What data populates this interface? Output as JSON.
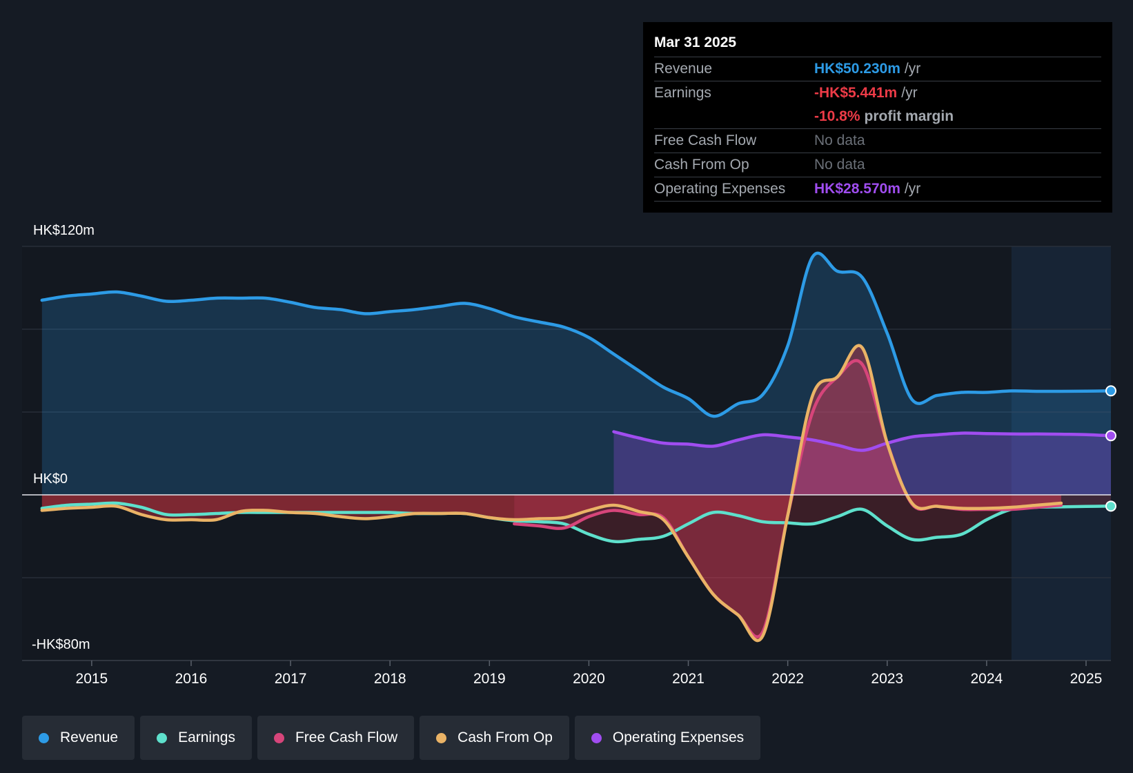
{
  "colors": {
    "revenue": "#2d9be6",
    "earnings": "#5ee0cc",
    "free_cash_flow": "#d6457a",
    "cash_from_op": "#eab366",
    "operating_expenses": "#a04df0",
    "negative": "#ed3b47",
    "background": "#151b24"
  },
  "tooltip": {
    "date": "Mar 31 2025",
    "rows": [
      {
        "label": "Revenue",
        "value": "HK$50.230m",
        "unit": "/yr"
      },
      {
        "label": "Earnings",
        "value": "-HK$5.441m",
        "unit": "/yr"
      },
      {
        "label": "",
        "value": "-10.8%",
        "unit": "profit margin"
      },
      {
        "label": "Free Cash Flow",
        "value": "No data",
        "unit": ""
      },
      {
        "label": "Cash From Op",
        "value": "No data",
        "unit": ""
      },
      {
        "label": "Operating Expenses",
        "value": "HK$28.570m",
        "unit": "/yr"
      }
    ]
  },
  "legend": [
    {
      "label": "Revenue",
      "icon": "revenue-dot"
    },
    {
      "label": "Earnings",
      "icon": "earnings-dot"
    },
    {
      "label": "Free Cash Flow",
      "icon": "free-cash-flow-dot"
    },
    {
      "label": "Cash From Op",
      "icon": "cash-from-op-dot"
    },
    {
      "label": "Operating Expenses",
      "icon": "operating-expenses-dot"
    }
  ],
  "chart_data": {
    "type": "area",
    "title": "",
    "xlabel": "",
    "ylabel": "",
    "y_axis_labels": {
      "top": "HK$120m",
      "zero": "HK$0",
      "bottom": "-HK$80m"
    },
    "ylim": [
      -80,
      120
    ],
    "xlim": [
      2014.3,
      2025.25
    ],
    "x_ticks": [
      "2015",
      "2016",
      "2017",
      "2018",
      "2019",
      "2020",
      "2021",
      "2022",
      "2023",
      "2024",
      "2025"
    ],
    "forecast_shade_start": 2024.25,
    "series": [
      {
        "name": "Revenue",
        "x": [
          2014.5,
          2014.75,
          2015.0,
          2015.25,
          2015.5,
          2015.75,
          2016.0,
          2016.25,
          2016.5,
          2016.75,
          2017.0,
          2017.25,
          2017.5,
          2017.75,
          2018.0,
          2018.25,
          2018.5,
          2018.75,
          2019.0,
          2019.25,
          2019.5,
          2019.75,
          2020.0,
          2020.25,
          2020.5,
          2020.75,
          2021.0,
          2021.25,
          2021.5,
          2021.75,
          2022.0,
          2022.25,
          2022.5,
          2022.75,
          2023.0,
          2023.25,
          2023.5,
          2023.75,
          2024.0,
          2024.25,
          2024.5,
          2024.75,
          2025.0,
          2025.25
        ],
        "values": [
          94,
          96,
          97,
          98,
          96,
          93.5,
          94,
          95,
          95,
          95,
          93,
          90.5,
          89.5,
          87.5,
          88.5,
          89.5,
          91,
          92.5,
          90,
          86,
          83.5,
          81,
          76,
          68,
          60,
          52,
          46.5,
          38,
          44,
          48.5,
          72,
          115,
          108,
          105,
          78,
          46,
          48,
          49.5,
          49.5,
          50.2,
          50,
          50,
          50.1,
          50.23
        ]
      },
      {
        "name": "Earnings",
        "x": [
          2014.5,
          2014.75,
          2015.0,
          2015.25,
          2015.5,
          2015.75,
          2016.0,
          2016.25,
          2016.5,
          2016.75,
          2017.0,
          2017.25,
          2017.5,
          2017.75,
          2018.0,
          2018.25,
          2018.5,
          2018.75,
          2019.0,
          2019.25,
          2019.5,
          2019.75,
          2020.0,
          2020.25,
          2020.5,
          2020.75,
          2021.0,
          2021.25,
          2021.5,
          2021.75,
          2022.0,
          2022.25,
          2022.5,
          2022.75,
          2023.0,
          2023.25,
          2023.5,
          2023.75,
          2024.0,
          2024.25,
          2024.5,
          2024.75,
          2025.0,
          2025.25
        ],
        "values": [
          -6.5,
          -5,
          -4.5,
          -4,
          -6,
          -9.5,
          -9.5,
          -9,
          -8.5,
          -8.5,
          -8.5,
          -8.5,
          -8.5,
          -8.5,
          -8.5,
          -9,
          -9,
          -9,
          -11,
          -12.5,
          -13,
          -14,
          -19,
          -22.5,
          -21.5,
          -20,
          -14,
          -8.5,
          -10,
          -13,
          -13.5,
          -14,
          -10.5,
          -7,
          -15,
          -21.5,
          -20.5,
          -19,
          -12,
          -7,
          -6,
          -5.8,
          -5.6,
          -5.44
        ]
      },
      {
        "name": "Free Cash Flow",
        "x": [
          2019.25,
          2019.5,
          2019.75,
          2020.0,
          2020.25,
          2020.5,
          2020.75,
          2021.0,
          2021.25,
          2021.5,
          2021.75,
          2022.0,
          2022.25,
          2022.5,
          2022.75,
          2023.0,
          2023.25,
          2023.5,
          2023.75,
          2024.0,
          2024.25,
          2024.5,
          2024.75
        ],
        "values": [
          -14,
          -15,
          -16,
          -10.5,
          -7.5,
          -9.5,
          -11,
          -30,
          -48,
          -58,
          -66,
          -10,
          40,
          57,
          63,
          25,
          -4.5,
          -5.5,
          -7,
          -7,
          -7,
          -6,
          -5
        ]
      },
      {
        "name": "Cash From Op",
        "x": [
          2014.5,
          2014.75,
          2015.0,
          2015.25,
          2015.5,
          2015.75,
          2016.0,
          2016.25,
          2016.5,
          2016.75,
          2017.0,
          2017.25,
          2017.5,
          2017.75,
          2018.0,
          2018.25,
          2018.5,
          2018.75,
          2019.0,
          2019.25,
          2019.5,
          2019.75,
          2020.0,
          2020.25,
          2020.5,
          2020.75,
          2021.0,
          2021.25,
          2021.5,
          2021.75,
          2022.0,
          2022.25,
          2022.5,
          2022.75,
          2023.0,
          2023.25,
          2023.5,
          2023.75,
          2024.0,
          2024.25,
          2024.5,
          2024.75
        ],
        "values": [
          -7.5,
          -6.5,
          -6,
          -5.5,
          -9.5,
          -12,
          -12,
          -12,
          -8,
          -7.5,
          -8.5,
          -9,
          -10.5,
          -11.5,
          -10.5,
          -9,
          -9,
          -9,
          -11,
          -12,
          -11.5,
          -11,
          -7.5,
          -5,
          -8,
          -12,
          -30,
          -48,
          -58,
          -68,
          -10,
          48,
          57,
          71,
          25,
          -4,
          -5.5,
          -6.5,
          -6.5,
          -6,
          -5,
          -4
        ]
      },
      {
        "name": "Operating Expenses",
        "x": [
          2020.25,
          2020.5,
          2020.75,
          2021.0,
          2021.25,
          2021.5,
          2021.75,
          2022.0,
          2022.25,
          2022.5,
          2022.75,
          2023.0,
          2023.25,
          2023.5,
          2023.75,
          2024.0,
          2024.25,
          2024.5,
          2024.75,
          2025.0,
          2025.25
        ],
        "values": [
          30.5,
          27.5,
          25,
          24.5,
          23.5,
          26.5,
          29,
          28,
          26.5,
          24,
          21.5,
          25,
          28,
          29,
          29.8,
          29.6,
          29.4,
          29.4,
          29.3,
          29.1,
          28.57
        ]
      }
    ]
  }
}
